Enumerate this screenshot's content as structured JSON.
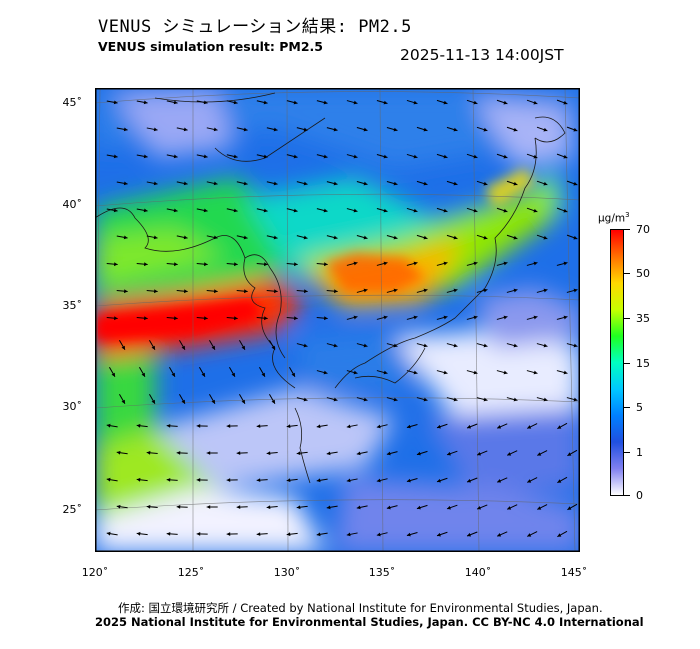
{
  "header": {
    "title_ja": "VENUS シミュレーション結果: PM2.5",
    "title_en": "VENUS simulation result: PM2.5",
    "timestamp": "2025-11-13 14:00JST"
  },
  "map": {
    "lat_labels": [
      "45˚",
      "40˚",
      "35˚",
      "30˚",
      "25˚"
    ],
    "lon_labels": [
      "120˚",
      "125˚",
      "130˚",
      "135˚",
      "140˚",
      "145˚"
    ]
  },
  "colorbar": {
    "unit_base": "μg/m",
    "unit_sup": "3",
    "ticks": [
      "70",
      "50",
      "35",
      "15",
      "5",
      "1",
      "0"
    ],
    "colors": [
      "#ff0000",
      "#ff7000",
      "#ffd800",
      "#c8ff00",
      "#20ff20",
      "#00ffc0",
      "#00c8ff",
      "#0080ff",
      "#2050e0",
      "#8080f0",
      "#ffffff"
    ]
  },
  "footer": {
    "credit_line1": "作成: 国立環境研究所 / Created by National Institute for Environmental Studies, Japan.",
    "credit_line2": "2025 National Institute for Environmental Studies, Japan. CC BY-NC 4.0 International"
  }
}
